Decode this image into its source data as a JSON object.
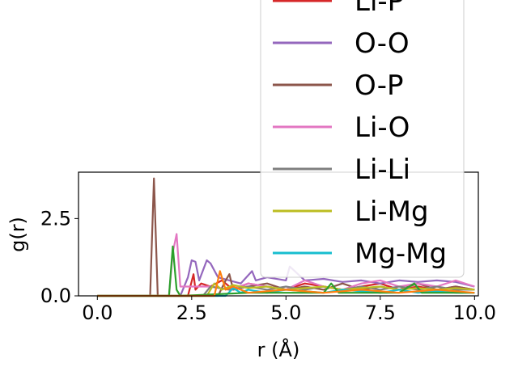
{
  "chart_data": {
    "type": "line",
    "title": "",
    "xlabel": "r (Å)",
    "ylabel": "g(r)",
    "xlim": [
      -0.5,
      10.1
    ],
    "ylim": [
      0,
      4.0
    ],
    "xticks": [
      0.0,
      2.5,
      5.0,
      7.5,
      10.0
    ],
    "xtick_labels": [
      "0.0",
      "2.5",
      "5.0",
      "7.5",
      "10.0"
    ],
    "yticks": [
      0.0,
      2.5
    ],
    "ytick_labels": [
      "0.0",
      "2.5"
    ],
    "grid": false,
    "legend_position": "upper-right",
    "series": [
      {
        "name": "Li-P",
        "color": "#d62728",
        "x": [
          0,
          2.4,
          2.55,
          2.6,
          2.75,
          3.0,
          3.3,
          3.6,
          4.0,
          4.5,
          5.0,
          5.5,
          6.0,
          6.5,
          7.0,
          7.5,
          8.0,
          8.5,
          9.0,
          9.5,
          10.0
        ],
        "y": [
          0,
          0,
          0.7,
          0.2,
          0.4,
          0.3,
          0.5,
          0.2,
          0.4,
          0.3,
          0.2,
          0.4,
          0.3,
          0.2,
          0.3,
          0.4,
          0.2,
          0.3,
          0.2,
          0.3,
          0.2
        ]
      },
      {
        "name": "O-O",
        "color": "#9467bd",
        "x": [
          0,
          2.2,
          2.4,
          2.5,
          2.6,
          2.7,
          2.9,
          3.0,
          3.2,
          3.5,
          3.8,
          4.1,
          4.2,
          4.5,
          5.0,
          5.1,
          5.5,
          6.0,
          6.5,
          7.0,
          7.5,
          8.0,
          8.5,
          9.0,
          9.5,
          10.0
        ],
        "y": [
          0,
          0,
          0.6,
          1.15,
          1.1,
          0.5,
          1.15,
          1.05,
          0.6,
          0.5,
          0.4,
          0.8,
          0.5,
          0.6,
          0.5,
          0.95,
          0.5,
          0.55,
          0.45,
          0.5,
          0.4,
          0.5,
          0.45,
          0.5,
          0.45,
          0.3
        ]
      },
      {
        "name": "O-P",
        "color": "#8c564b",
        "x": [
          0,
          1.4,
          1.5,
          1.6,
          1.8,
          3.2,
          3.4,
          3.5,
          3.6,
          4.0,
          4.5,
          5.0,
          5.5,
          6.0,
          6.5,
          7.0,
          7.5,
          8.0,
          8.5,
          9.0,
          9.5,
          10.0
        ],
        "y": [
          0,
          0,
          3.8,
          0,
          0,
          0,
          0.5,
          0.7,
          0.2,
          0.3,
          0.4,
          0.2,
          0.3,
          0.2,
          0.4,
          0.2,
          0.3,
          0.2,
          0.4,
          0.2,
          0.3,
          0.2
        ]
      },
      {
        "name": "Li-O",
        "color": "#e377c2",
        "x": [
          0,
          1.9,
          2.0,
          2.1,
          2.2,
          3.0,
          3.5,
          4.0,
          4.5,
          5.0,
          5.5,
          6.0,
          6.5,
          7.0,
          7.5,
          8.0,
          8.5,
          9.0,
          9.5,
          10.0
        ],
        "y": [
          0,
          0,
          1.4,
          2.0,
          0.3,
          0.3,
          0.2,
          0.4,
          0.3,
          0.2,
          0.5,
          0.3,
          0.2,
          0.4,
          0.5,
          0.3,
          0.4,
          0.3,
          0.5,
          0.3
        ]
      },
      {
        "name": "Li-Li",
        "color": "#7f7f7f",
        "x": [
          0,
          2.8,
          3.0,
          3.5,
          4.0,
          4.5,
          5.0,
          5.5,
          6.0,
          6.5,
          7.0,
          7.5,
          8.0,
          8.5,
          9.0,
          9.5,
          10.0
        ],
        "y": [
          0,
          0,
          0.3,
          0.2,
          0.3,
          0.2,
          0.3,
          0.2,
          0.3,
          0.2,
          0.3,
          0.2,
          0.3,
          0.2,
          0.3,
          0.2,
          0.2
        ]
      },
      {
        "name": "Li-Mg",
        "color": "#bcbd22",
        "x": [
          0,
          2.9,
          3.1,
          3.3,
          3.6,
          4.0,
          4.5,
          5.0,
          5.5,
          6.0,
          6.5,
          7.0,
          7.5,
          8.0,
          8.5,
          9.0,
          9.5,
          10.0
        ],
        "y": [
          0,
          0,
          0.4,
          0.2,
          0.35,
          0.25,
          0.3,
          0.2,
          0.25,
          0.3,
          0.2,
          0.25,
          0.3,
          0.2,
          0.25,
          0.2,
          0.25,
          0.2
        ]
      },
      {
        "name": "Mg-Mg",
        "color": "#17becf",
        "x": [
          0,
          3.4,
          3.6,
          3.8,
          4.0,
          4.5,
          5.0,
          5.5,
          6.0,
          6.5,
          7.0,
          7.5,
          8.0,
          8.5,
          9.0,
          9.5,
          10.0
        ],
        "y": [
          0,
          0,
          0.25,
          0.1,
          0.2,
          0.1,
          0.2,
          0.15,
          0.1,
          0.2,
          0.15,
          0.1,
          0.2,
          0.1,
          0.15,
          0.1,
          0.1
        ]
      },
      {
        "name": "",
        "color": "#2ca02c",
        "x": [
          0,
          1.9,
          2.0,
          2.1,
          2.2,
          4.0,
          5.0,
          6.0,
          6.2,
          6.4,
          7.0,
          8.0,
          8.4,
          8.6,
          9.0,
          10.0
        ],
        "y": [
          0,
          0,
          1.6,
          0.2,
          0,
          0.1,
          0.1,
          0.1,
          0.4,
          0.1,
          0.1,
          0.1,
          0.4,
          0.1,
          0.1,
          0.1
        ]
      },
      {
        "name": "",
        "color": "#ff7f0e",
        "x": [
          0,
          3.1,
          3.25,
          3.4,
          3.6,
          4.0,
          5.0,
          6.0,
          7.0,
          8.0,
          9.0,
          10.0
        ],
        "y": [
          0,
          0,
          0.8,
          0.2,
          0.3,
          0.1,
          0.2,
          0.1,
          0.2,
          0.1,
          0.2,
          0.1
        ]
      }
    ]
  }
}
